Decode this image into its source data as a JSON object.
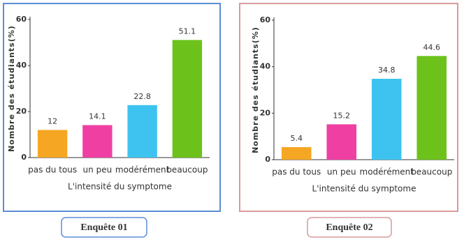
{
  "chart_data": [
    {
      "type": "bar",
      "caption": "Enquête 01",
      "ylabel": "Nombre des étudiants(%)",
      "xlabel": "L'intensité du symptome",
      "categories": [
        "pas du tous",
        "un peu",
        "modérément",
        "beaucoup"
      ],
      "values": [
        12,
        14.1,
        22.8,
        51.1
      ],
      "colors": [
        "#f5a623",
        "#ef3fa3",
        "#3ec3f0",
        "#6cc21a"
      ],
      "ylim": [
        0,
        60
      ],
      "yticks": [
        0,
        20,
        40,
        60
      ],
      "frame_color": "#5b8dd6"
    },
    {
      "type": "bar",
      "caption": "Enquête 02",
      "ylabel": "Nombre des étudiants(%)",
      "xlabel": "L'intensité du symptome",
      "categories": [
        "pas du tous",
        "un peu",
        "modérément",
        "beaucoup"
      ],
      "values": [
        5.4,
        15.2,
        34.8,
        44.6
      ],
      "colors": [
        "#f5a623",
        "#ef3fa3",
        "#3ec3f0",
        "#6cc21a"
      ],
      "ylim": [
        0,
        60
      ],
      "yticks": [
        0,
        20,
        40,
        60
      ],
      "frame_color": "#d99a9a"
    }
  ]
}
